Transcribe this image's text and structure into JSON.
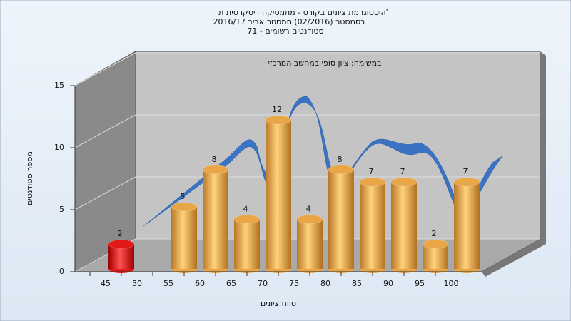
{
  "chart_data": {
    "type": "bar",
    "title_lines": [
      "היסטוגרמת ציונים בקורס - מתמטיקה דיסקרטית ת'",
      "בסמסטר (02/2016) סמסטר אביב 2016/17",
      "סטודנטים רשומים - 71"
    ],
    "subtitle": "במשימה: ציון סופי במחשב המרכזי",
    "x_label": "טווח ציונים",
    "y_label": "מספר סטודנטים",
    "categories": [
      "45",
      "50",
      "55",
      "60",
      "65",
      "70",
      "75",
      "80",
      "85",
      "90",
      "95",
      "100"
    ],
    "values": [
      2,
      null,
      5,
      8,
      4,
      12,
      4,
      8,
      7,
      7,
      2,
      7
    ],
    "colors": [
      "#e01818",
      null,
      "#e8a646",
      "#e8a646",
      "#e8a646",
      "#e8a646",
      "#e8a646",
      "#e8a646",
      "#e8a646",
      "#e8a646",
      "#e8a646",
      "#e8a646"
    ],
    "ylim": [
      0,
      15
    ],
    "yticks": [
      0,
      5,
      10,
      15
    ],
    "grid": true
  }
}
